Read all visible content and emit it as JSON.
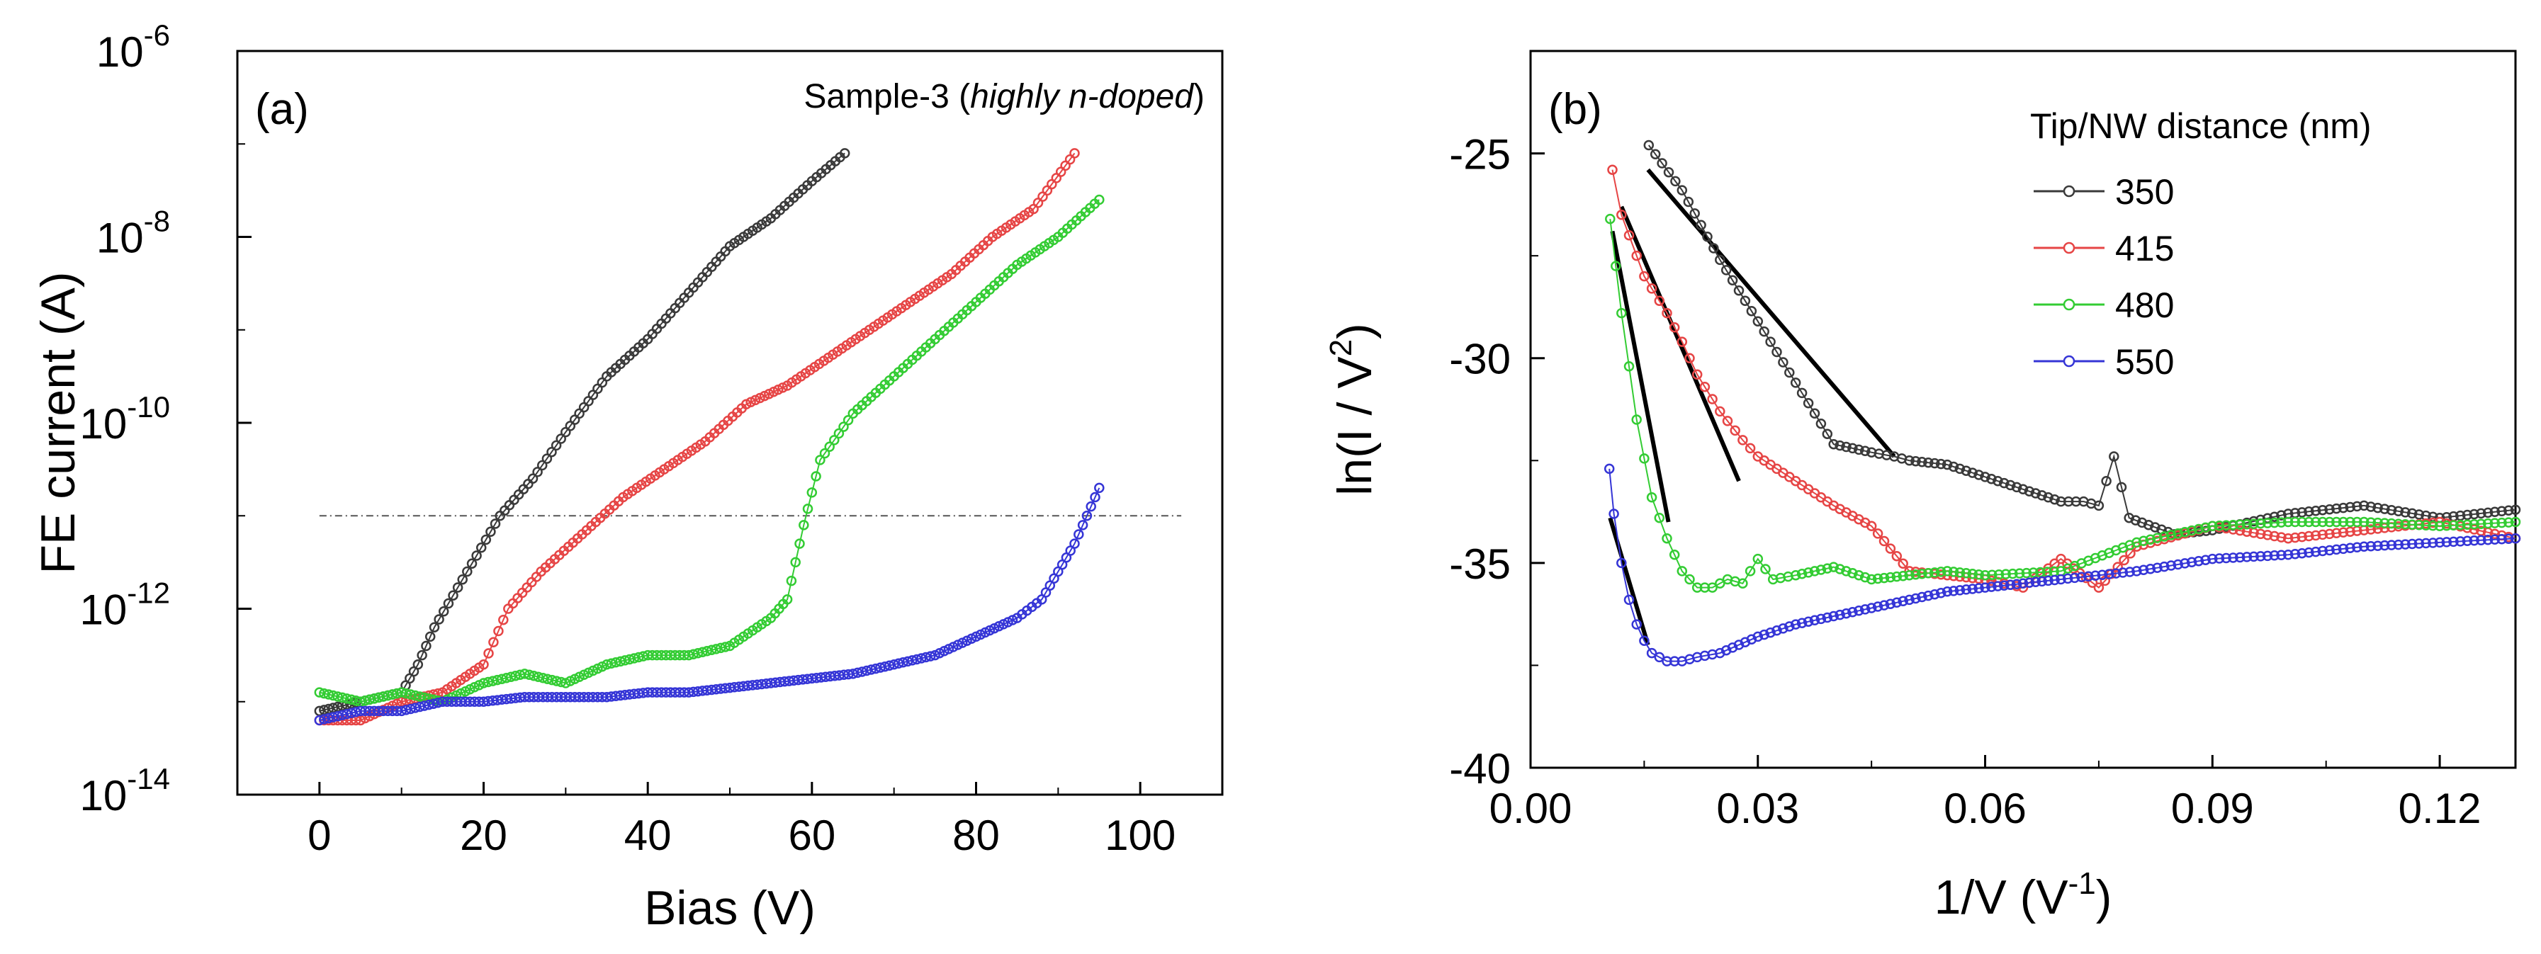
{
  "chart_data": [
    {
      "panel": "(a)",
      "type": "scatter",
      "annotation": "Sample-3",
      "annotation_open": "(",
      "annotation_italic": "highly n-doped",
      "annotation_close": ")",
      "xlabel": "Bias (V)",
      "ylabel": "FE current (A)",
      "xlim": [
        -10,
        110
      ],
      "ylim_log10": [
        -14,
        -6
      ],
      "yscale": "log",
      "x_ticks": [
        0,
        20,
        40,
        60,
        80,
        100
      ],
      "y_ticks": [
        {
          "base": "10",
          "exp": "-14"
        },
        {
          "base": "10",
          "exp": "-12"
        },
        {
          "base": "10",
          "exp": "-10"
        },
        {
          "base": "10",
          "exp": "-8"
        },
        {
          "base": "10",
          "exp": "-6"
        }
      ],
      "threshold_log10": -11,
      "series": [
        {
          "name": "350",
          "color": "#3a3a3a",
          "x": [
            0,
            5,
            10,
            12,
            14,
            18,
            22,
            26,
            30,
            35,
            40,
            45,
            50,
            55,
            60,
            64
          ],
          "log10_y": [
            -13.1,
            -13.0,
            -12.9,
            -12.6,
            -12.2,
            -11.6,
            -11.0,
            -10.6,
            -10.1,
            -9.5,
            -9.1,
            -8.6,
            -8.1,
            -7.8,
            -7.4,
            -7.1
          ]
        },
        {
          "name": "415",
          "color": "#e64545",
          "x": [
            0,
            5,
            10,
            15,
            20,
            23,
            27,
            32,
            37,
            42,
            47,
            52,
            57,
            62,
            67,
            72,
            77,
            82,
            87,
            92
          ],
          "log10_y": [
            -13.2,
            -13.2,
            -13.0,
            -12.9,
            -12.6,
            -12.0,
            -11.6,
            -11.2,
            -10.8,
            -10.5,
            -10.2,
            -9.8,
            -9.6,
            -9.3,
            -9.0,
            -8.7,
            -8.4,
            -8.0,
            -7.7,
            -7.1
          ]
        },
        {
          "name": "480",
          "color": "#33cc33",
          "x": [
            0,
            5,
            10,
            15,
            20,
            25,
            30,
            35,
            40,
            45,
            50,
            55,
            57,
            59,
            61,
            65,
            70,
            75,
            80,
            85,
            90,
            95
          ],
          "log10_y": [
            -12.9,
            -13.0,
            -12.9,
            -13.0,
            -12.8,
            -12.7,
            -12.8,
            -12.6,
            -12.5,
            -12.5,
            -12.4,
            -12.1,
            -11.9,
            -11.1,
            -10.4,
            -9.9,
            -9.5,
            -9.1,
            -8.7,
            -8.3,
            -8.0,
            -7.6
          ]
        },
        {
          "name": "550",
          "color": "#3535d6",
          "x": [
            0,
            5,
            10,
            15,
            20,
            25,
            30,
            35,
            40,
            45,
            50,
            55,
            60,
            65,
            70,
            75,
            80,
            85,
            88,
            90,
            92,
            94,
            95
          ],
          "log10_y": [
            -13.2,
            -13.1,
            -13.1,
            -13.0,
            -13.0,
            -12.95,
            -12.95,
            -12.95,
            -12.9,
            -12.9,
            -12.85,
            -12.8,
            -12.75,
            -12.7,
            -12.6,
            -12.5,
            -12.3,
            -12.1,
            -11.9,
            -11.6,
            -11.3,
            -10.9,
            -10.7
          ]
        }
      ]
    },
    {
      "panel": "(b)",
      "type": "scatter",
      "xlabel": "1/V (V",
      "xlabel_sup": "-1",
      "xlabel_close": ")",
      "ylabel": "ln(I / V",
      "ylabel_sup": "2",
      "ylabel_close": ")",
      "xlim": [
        0,
        0.13
      ],
      "ylim": [
        -40,
        -22.5
      ],
      "x_ticks": [
        "0.00",
        "0.03",
        "0.06",
        "0.09",
        "0.12"
      ],
      "y_ticks": [
        "-40",
        "-35",
        "-30",
        "-25"
      ],
      "legend_title": "Tip/NW distance (nm)",
      "legend_position": "top-right",
      "series": [
        {
          "name": "350",
          "color": "#3a3a3a",
          "x": [
            0.0156,
            0.02,
            0.025,
            0.03,
            0.035,
            0.04,
            0.045,
            0.048,
            0.05,
            0.055,
            0.06,
            0.065,
            0.07,
            0.073,
            0.075,
            0.077,
            0.079,
            0.085,
            0.09,
            0.1,
            0.11,
            0.12,
            0.13
          ],
          "y": [
            -24.8,
            -25.9,
            -27.6,
            -29.1,
            -30.6,
            -32.1,
            -32.3,
            -32.4,
            -32.5,
            -32.6,
            -32.9,
            -33.2,
            -33.5,
            -33.5,
            -33.6,
            -32.4,
            -33.9,
            -34.3,
            -34.2,
            -33.8,
            -33.6,
            -33.9,
            -33.7
          ]
        },
        {
          "name": "415",
          "color": "#e64545",
          "x": [
            0.0108,
            0.012,
            0.015,
            0.018,
            0.02,
            0.022,
            0.025,
            0.028,
            0.03,
            0.035,
            0.04,
            0.045,
            0.05,
            0.055,
            0.06,
            0.065,
            0.07,
            0.075,
            0.08,
            0.09,
            0.1,
            0.11,
            0.12,
            0.13
          ],
          "y": [
            -25.4,
            -26.5,
            -28.0,
            -28.9,
            -29.6,
            -30.4,
            -31.3,
            -32.0,
            -32.4,
            -33.0,
            -33.6,
            -34.1,
            -35.2,
            -35.3,
            -35.4,
            -35.6,
            -34.9,
            -35.6,
            -34.6,
            -34.1,
            -34.4,
            -34.2,
            -34.0,
            -34.4
          ]
        },
        {
          "name": "480",
          "color": "#33cc33",
          "x": [
            0.0105,
            0.012,
            0.014,
            0.016,
            0.018,
            0.02,
            0.022,
            0.024,
            0.026,
            0.028,
            0.03,
            0.032,
            0.035,
            0.04,
            0.045,
            0.05,
            0.055,
            0.06,
            0.07,
            0.08,
            0.09,
            0.1,
            0.11,
            0.12,
            0.13
          ],
          "y": [
            -26.6,
            -28.9,
            -31.5,
            -33.4,
            -34.4,
            -35.2,
            -35.6,
            -35.6,
            -35.4,
            -35.5,
            -34.9,
            -35.4,
            -35.3,
            -35.1,
            -35.4,
            -35.3,
            -35.2,
            -35.3,
            -35.2,
            -34.5,
            -34.1,
            -34.0,
            -34.0,
            -34.1,
            -34.0
          ]
        },
        {
          "name": "550",
          "color": "#3535d6",
          "x": [
            0.0104,
            0.011,
            0.012,
            0.013,
            0.014,
            0.015,
            0.016,
            0.018,
            0.02,
            0.022,
            0.025,
            0.03,
            0.035,
            0.04,
            0.045,
            0.05,
            0.055,
            0.06,
            0.065,
            0.07,
            0.08,
            0.09,
            0.1,
            0.11,
            0.12,
            0.13
          ],
          "y": [
            -32.7,
            -33.8,
            -35.0,
            -35.9,
            -36.5,
            -36.9,
            -37.2,
            -37.4,
            -37.4,
            -37.3,
            -37.2,
            -36.8,
            -36.5,
            -36.3,
            -36.1,
            -35.9,
            -35.7,
            -35.6,
            -35.5,
            -35.4,
            -35.2,
            -34.9,
            -34.8,
            -34.6,
            -34.5,
            -34.4
          ]
        }
      ],
      "fit_lines": [
        {
          "series": "350",
          "x": [
            0.0155,
            0.048
          ],
          "y": [
            -25.4,
            -32.4
          ]
        },
        {
          "series": "415",
          "x": [
            0.012,
            0.0275
          ],
          "y": [
            -26.3,
            -33.0
          ]
        },
        {
          "series": "480",
          "x": [
            0.0108,
            0.0182
          ],
          "y": [
            -26.9,
            -34.0
          ]
        },
        {
          "series": "550",
          "x": [
            0.0105,
            0.0155
          ],
          "y": [
            -33.9,
            -37.0
          ]
        }
      ]
    }
  ]
}
